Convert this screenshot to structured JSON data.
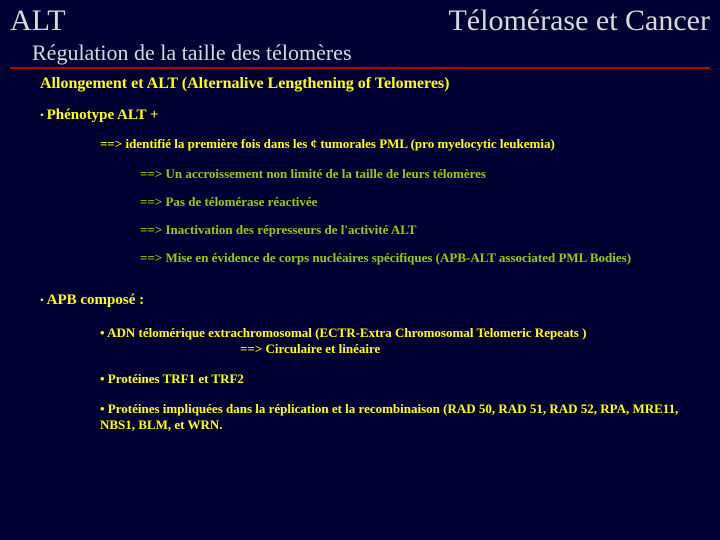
{
  "header": {
    "left": "ALT",
    "right": "Télomérase et Cancer"
  },
  "subtitle": "Régulation de la taille des télomères",
  "section1": {
    "title": "Allongement et ALT (Alternalive Lengthening of Telomeres)",
    "bullet_label": "Phénotype ALT +",
    "intro": "==> identifié la première fois dans les ¢ tumorales PML (pro myelocytic leukemia)",
    "points": [
      "==> Un accroissement non limité de la taille de leurs télomères",
      "==> Pas de télomérase réactivée",
      "==> Inactivation des répresseurs de l'activité ALT",
      "==> Mise en évidence de corps nucléaires spécifiques (APB-ALT associated PML Bodies)"
    ]
  },
  "section2": {
    "bullet_label": "APB composé :",
    "items": {
      "a_line1": "• ADN télomérique extrachromosomal (ECTR-Extra Chromosomal Telomeric Repeats )",
      "a_line2": "==>  Circulaire et linéaire",
      "b": "• Protéines TRF1 et TRF2",
      "c": "• Protéines impliquées dans la réplication et la recombinaison (RAD 50, RAD 51, RAD 52, RPA, MRE11, NBS1, BLM, et WRN."
    }
  }
}
